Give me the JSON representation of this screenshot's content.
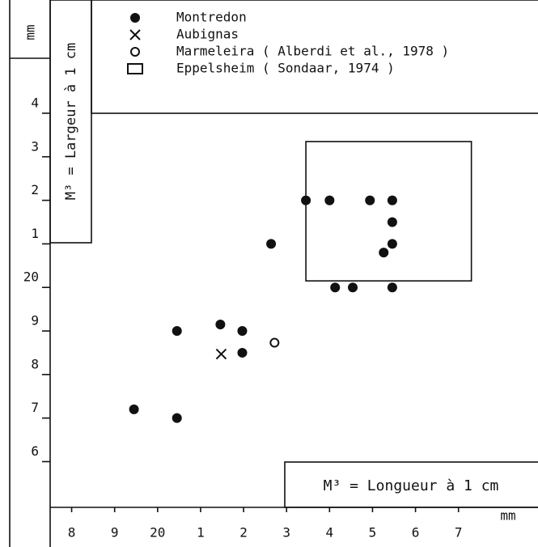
{
  "chart_data": {
    "type": "scatter",
    "x_label": "mm",
    "y_label": "mm",
    "x_title": "M³ = Longueur à 1 cm",
    "y_title": "M³ = Largeur à 1 cm",
    "xlim": [
      17.5,
      28.85
    ],
    "ylim": [
      14.95,
      26.6
    ],
    "xticks": [
      {
        "value": 18,
        "label": "8"
      },
      {
        "value": 19,
        "label": "9"
      },
      20,
      {
        "value": 21,
        "label": "1"
      },
      {
        "value": 22,
        "label": "2"
      },
      {
        "value": 23,
        "label": "3"
      },
      {
        "value": 24,
        "label": "4"
      },
      {
        "value": 25,
        "label": "5"
      },
      {
        "value": 26,
        "label": "6"
      },
      {
        "value": 27,
        "label": "7"
      }
    ],
    "yticks": [
      {
        "value": 16,
        "label": "6"
      },
      {
        "value": 17,
        "label": "7"
      },
      {
        "value": 18,
        "label": "8"
      },
      {
        "value": 19,
        "label": "9"
      },
      20,
      {
        "value": 21,
        "label": "1"
      },
      {
        "value": 22,
        "label": "2"
      },
      {
        "value": 23,
        "label": "3"
      },
      {
        "value": 24,
        "label": "4"
      }
    ],
    "series": [
      {
        "name": "Montredon",
        "marker": "filled-circle",
        "color": "#111111",
        "x": [
          19.45,
          20.45,
          20.45,
          21.46,
          21.97,
          21.97,
          22.64,
          23.45,
          24.0,
          24.94,
          25.46,
          25.46,
          25.46,
          25.26,
          24.13,
          24.54,
          25.46
        ],
        "y": [
          17.2,
          17.0,
          19.0,
          19.15,
          19.0,
          18.5,
          21.0,
          22.0,
          22.0,
          22.0,
          22.0,
          21.5,
          21.0,
          20.8,
          20.0,
          20.0,
          20.0
        ]
      },
      {
        "name": "Aubignas",
        "marker": "cross",
        "color": "#111111",
        "x": [
          21.48
        ],
        "y": [
          18.47
        ]
      },
      {
        "name": "Marmeleira ( Alberdi et al., 1978 )",
        "marker": "open-circle",
        "color": "#111111",
        "x": [
          22.72
        ],
        "y": [
          18.73
        ]
      },
      {
        "name": "Eppelsheim ( Sondaar, 1974 )",
        "marker": "rectangle",
        "color": "#111111",
        "x": [
          23.45,
          27.3
        ],
        "y": [
          20.15,
          23.35
        ]
      }
    ]
  }
}
